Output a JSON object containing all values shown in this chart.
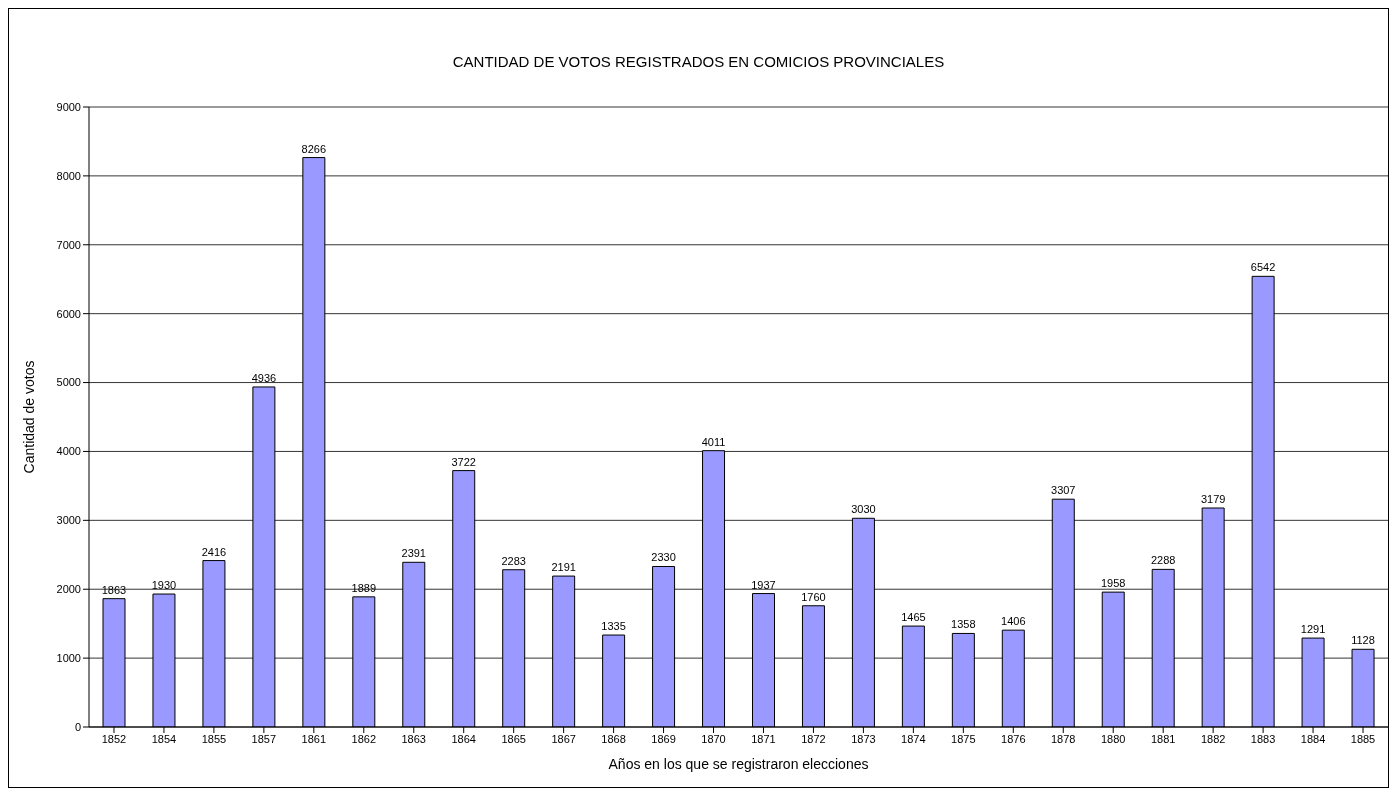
{
  "chart_data": {
    "type": "bar",
    "title": "CANTIDAD DE VOTOS REGISTRADOS EN COMICIOS PROVINCIALES",
    "xlabel": "Años en los que se registraron elecciones",
    "ylabel": "Cantidad de votos",
    "categories": [
      "1852",
      "1854",
      "1855",
      "1857",
      "1861",
      "1862",
      "1863",
      "1864",
      "1865",
      "1867",
      "1868",
      "1869",
      "1870",
      "1871",
      "1872",
      "1873",
      "1874",
      "1875",
      "1876",
      "1878",
      "1880",
      "1881",
      "1882",
      "1883",
      "1884",
      "1885"
    ],
    "values": [
      1863,
      1930,
      2416,
      4936,
      8266,
      1889,
      2391,
      3722,
      2283,
      2191,
      1335,
      2330,
      4011,
      1937,
      1760,
      3030,
      1465,
      1358,
      1406,
      3307,
      1958,
      2288,
      3179,
      6542,
      1291,
      1128
    ],
    "color": "#9999ff",
    "ylim": [
      0,
      9000
    ],
    "yticks": [
      0,
      1000,
      2000,
      3000,
      4000,
      5000,
      6000,
      7000,
      8000,
      9000
    ],
    "grid": "y",
    "data_labels": true,
    "legend": false
  }
}
